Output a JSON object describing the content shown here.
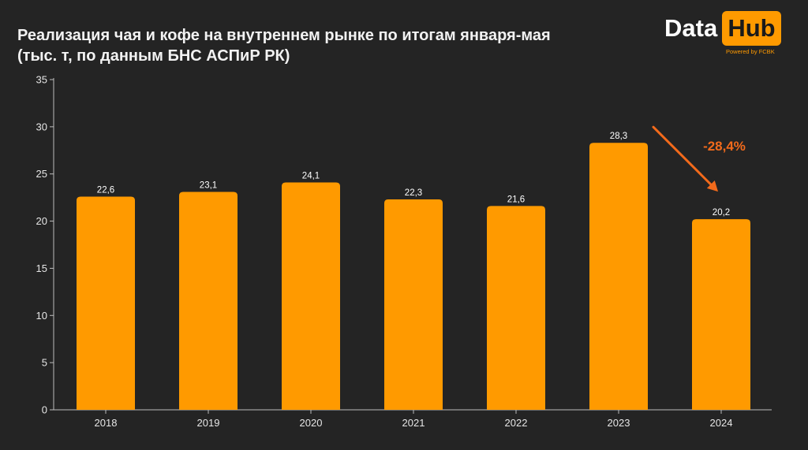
{
  "header": {
    "title_line1": "Реализация чая и кофе на внутреннем рынке по итогам января-мая",
    "title_line2": "(тыс. т, по данным БНС АСПиР РК)"
  },
  "logo": {
    "word1": "Data",
    "word2": "Hub",
    "powered": "Powered by FCBK"
  },
  "colors": {
    "background": "#242424",
    "bar": "#ff9a00",
    "annotation": "#f26a1b",
    "text": "#f2f2f2"
  },
  "chart_data": {
    "type": "bar",
    "title": "Реализация чая и кофе на внутреннем рынке по итогам января-мая",
    "subtitle": "(тыс. т, по данным БНС АСПиР РК)",
    "categories": [
      "2018",
      "2019",
      "2020",
      "2021",
      "2022",
      "2023",
      "2024"
    ],
    "values": [
      22.6,
      23.1,
      24.1,
      22.3,
      21.6,
      28.3,
      20.2
    ],
    "value_labels": [
      "22,6",
      "23,1",
      "24,1",
      "22,3",
      "21,6",
      "28,3",
      "20,2"
    ],
    "ylim": [
      0,
      35
    ],
    "yticks": [
      0,
      5,
      10,
      15,
      20,
      25,
      30,
      35
    ],
    "xlabel": "",
    "ylabel": "",
    "grid": false,
    "annotation": {
      "text": "-28,4%",
      "from": "2023",
      "to": "2024"
    }
  }
}
